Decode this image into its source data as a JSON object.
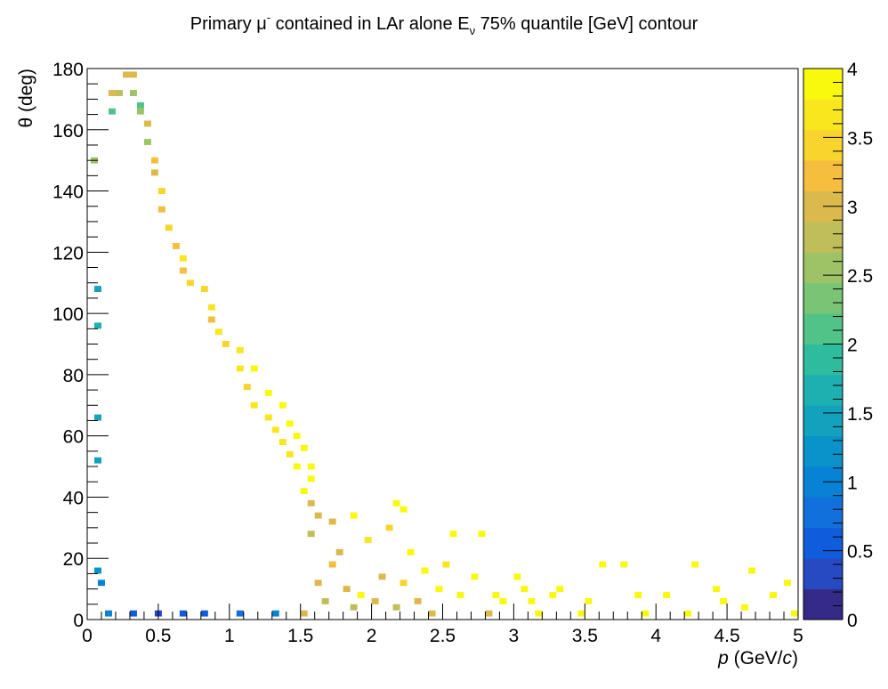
{
  "chart_data": {
    "type": "heatmap",
    "title": {
      "prefix": "Primary μ",
      "sup": "-",
      "middle": " contained in LAr alone E",
      "sub": "ν",
      "suffix": " 75% quantile [GeV] contour"
    },
    "xlabel": {
      "var": "p",
      "rest_open": " (GeV/",
      "c": "c",
      "rest_close": ")"
    },
    "ylabel": "θ (deg)",
    "xlim": [
      0,
      5
    ],
    "ylim": [
      0,
      180
    ],
    "zlim": [
      0,
      4
    ],
    "x_ticks": [
      "0",
      "0.5",
      "1",
      "1.5",
      "2",
      "2.5",
      "3",
      "3.5",
      "4",
      "4.5",
      "5"
    ],
    "y_ticks": [
      "0",
      "20",
      "40",
      "60",
      "80",
      "100",
      "120",
      "140",
      "160",
      "180"
    ],
    "z_ticks": [
      "0",
      "0.5",
      "1",
      "1.5",
      "2",
      "2.5",
      "3",
      "3.5",
      "4"
    ],
    "bin_width_p": 0.05,
    "bin_width_theta": 2,
    "colormap": [
      "#352a87",
      "#2749c1",
      "#0f5cdd",
      "#1270dc",
      "#0882d4",
      "#0993ca",
      "#13a2bd",
      "#1eafb0",
      "#2fbc9e",
      "#51c388",
      "#7ac475",
      "#9ec366",
      "#bfbe5b",
      "#dbb94d",
      "#f5be3e",
      "#f9d42d",
      "#f9e61e",
      "#f9f90e"
    ],
    "z_description": "E_nu 75% quantile [GeV]",
    "bins": [
      [
        0.175,
        172,
        2.9
      ],
      [
        0.225,
        172,
        2.8
      ],
      [
        0.275,
        178,
        3.0
      ],
      [
        0.325,
        178,
        2.9
      ],
      [
        0.325,
        172,
        2.6
      ],
      [
        0.375,
        168,
        2.2
      ],
      [
        0.175,
        166,
        2.1
      ],
      [
        0.05,
        150,
        2.5
      ],
      [
        0.075,
        108,
        1.5
      ],
      [
        0.075,
        96,
        1.6
      ],
      [
        0.075,
        66,
        1.5
      ],
      [
        0.075,
        52,
        1.4
      ],
      [
        0.075,
        16,
        1.2
      ],
      [
        0.1,
        12,
        1.0
      ],
      [
        0.15,
        2,
        1.0
      ],
      [
        0.325,
        2,
        0.5
      ],
      [
        0.5,
        2,
        0.4
      ],
      [
        0.675,
        2,
        0.5
      ],
      [
        0.825,
        2,
        0.6
      ],
      [
        1.075,
        2,
        0.8
      ],
      [
        1.325,
        2,
        1.0
      ],
      [
        1.525,
        2,
        3.0
      ],
      [
        1.625,
        12,
        3.1
      ],
      [
        1.675,
        6,
        2.8
      ],
      [
        1.725,
        18,
        3.2
      ],
      [
        1.775,
        22,
        2.9
      ],
      [
        1.825,
        10,
        3.0
      ],
      [
        1.875,
        4,
        2.7
      ],
      [
        1.925,
        8,
        3.8
      ],
      [
        1.975,
        26,
        3.6
      ],
      [
        2.025,
        6,
        2.9
      ],
      [
        2.075,
        14,
        3.0
      ],
      [
        2.125,
        30,
        3.5
      ],
      [
        2.175,
        4,
        2.8
      ],
      [
        2.225,
        12,
        3.4
      ],
      [
        2.275,
        22,
        3.9
      ],
      [
        2.325,
        6,
        3.1
      ],
      [
        2.375,
        16,
        3.8
      ],
      [
        2.425,
        2,
        2.9
      ],
      [
        2.475,
        10,
        4.0
      ],
      [
        2.525,
        18,
        3.6
      ],
      [
        2.575,
        28,
        4.0
      ],
      [
        2.625,
        8,
        3.9
      ],
      [
        2.725,
        14,
        3.8
      ],
      [
        2.775,
        28,
        3.9
      ],
      [
        2.825,
        2,
        2.9
      ],
      [
        2.875,
        8,
        3.8
      ],
      [
        2.925,
        6,
        3.9
      ],
      [
        3.025,
        14,
        3.9
      ],
      [
        3.075,
        10,
        3.8
      ],
      [
        3.125,
        6,
        4.0
      ],
      [
        3.175,
        2,
        3.8
      ],
      [
        3.275,
        8,
        3.9
      ],
      [
        3.325,
        10,
        4.0
      ],
      [
        3.475,
        2,
        3.9
      ],
      [
        3.525,
        6,
        4.0
      ],
      [
        3.625,
        18,
        3.9
      ],
      [
        3.775,
        18,
        3.9
      ],
      [
        3.875,
        8,
        3.8
      ],
      [
        3.925,
        2,
        3.9
      ],
      [
        4.075,
        8,
        3.9
      ],
      [
        4.225,
        2,
        3.8
      ],
      [
        4.275,
        18,
        3.9
      ],
      [
        4.425,
        10,
        4.0
      ],
      [
        4.475,
        6,
        3.9
      ],
      [
        4.625,
        4,
        3.8
      ],
      [
        4.675,
        16,
        3.9
      ],
      [
        4.825,
        8,
        4.0
      ],
      [
        4.925,
        12,
        3.9
      ],
      [
        4.975,
        2,
        3.8
      ],
      [
        1.625,
        34,
        2.9
      ],
      [
        1.725,
        32,
        3.1
      ],
      [
        1.875,
        34,
        3.8
      ],
      [
        2.175,
        38,
        4.0
      ],
      [
        2.225,
        36,
        3.9
      ],
      [
        1.575,
        38,
        3.0
      ],
      [
        1.575,
        28,
        2.7
      ],
      [
        1.525,
        42,
        3.8
      ],
      [
        1.575,
        46,
        3.9
      ],
      [
        1.475,
        50,
        3.8
      ],
      [
        1.575,
        50,
        3.9
      ],
      [
        1.425,
        54,
        3.7
      ],
      [
        1.525,
        56,
        3.8
      ],
      [
        1.375,
        58,
        3.7
      ],
      [
        1.475,
        60,
        3.9
      ],
      [
        1.325,
        62,
        3.6
      ],
      [
        1.425,
        64,
        3.8
      ],
      [
        1.275,
        66,
        3.6
      ],
      [
        1.375,
        70,
        3.9
      ],
      [
        1.175,
        70,
        3.7
      ],
      [
        1.275,
        74,
        3.8
      ],
      [
        1.125,
        76,
        3.5
      ],
      [
        1.175,
        82,
        3.8
      ],
      [
        1.075,
        82,
        3.6
      ],
      [
        1.075,
        88,
        3.7
      ],
      [
        0.975,
        90,
        3.5
      ],
      [
        0.925,
        94,
        3.6
      ],
      [
        0.875,
        98,
        3.3
      ],
      [
        0.875,
        102,
        3.7
      ],
      [
        0.825,
        108,
        3.5
      ],
      [
        0.725,
        110,
        3.4
      ],
      [
        0.675,
        114,
        3.2
      ],
      [
        0.675,
        118,
        3.6
      ],
      [
        0.625,
        122,
        3.3
      ],
      [
        0.575,
        128,
        3.5
      ],
      [
        0.525,
        134,
        3.2
      ],
      [
        0.525,
        140,
        3.4
      ],
      [
        0.475,
        146,
        3.0
      ],
      [
        0.475,
        150,
        3.3
      ],
      [
        0.425,
        156,
        2.6
      ],
      [
        0.425,
        162,
        2.9
      ],
      [
        0.375,
        166,
        2.5
      ]
    ]
  }
}
